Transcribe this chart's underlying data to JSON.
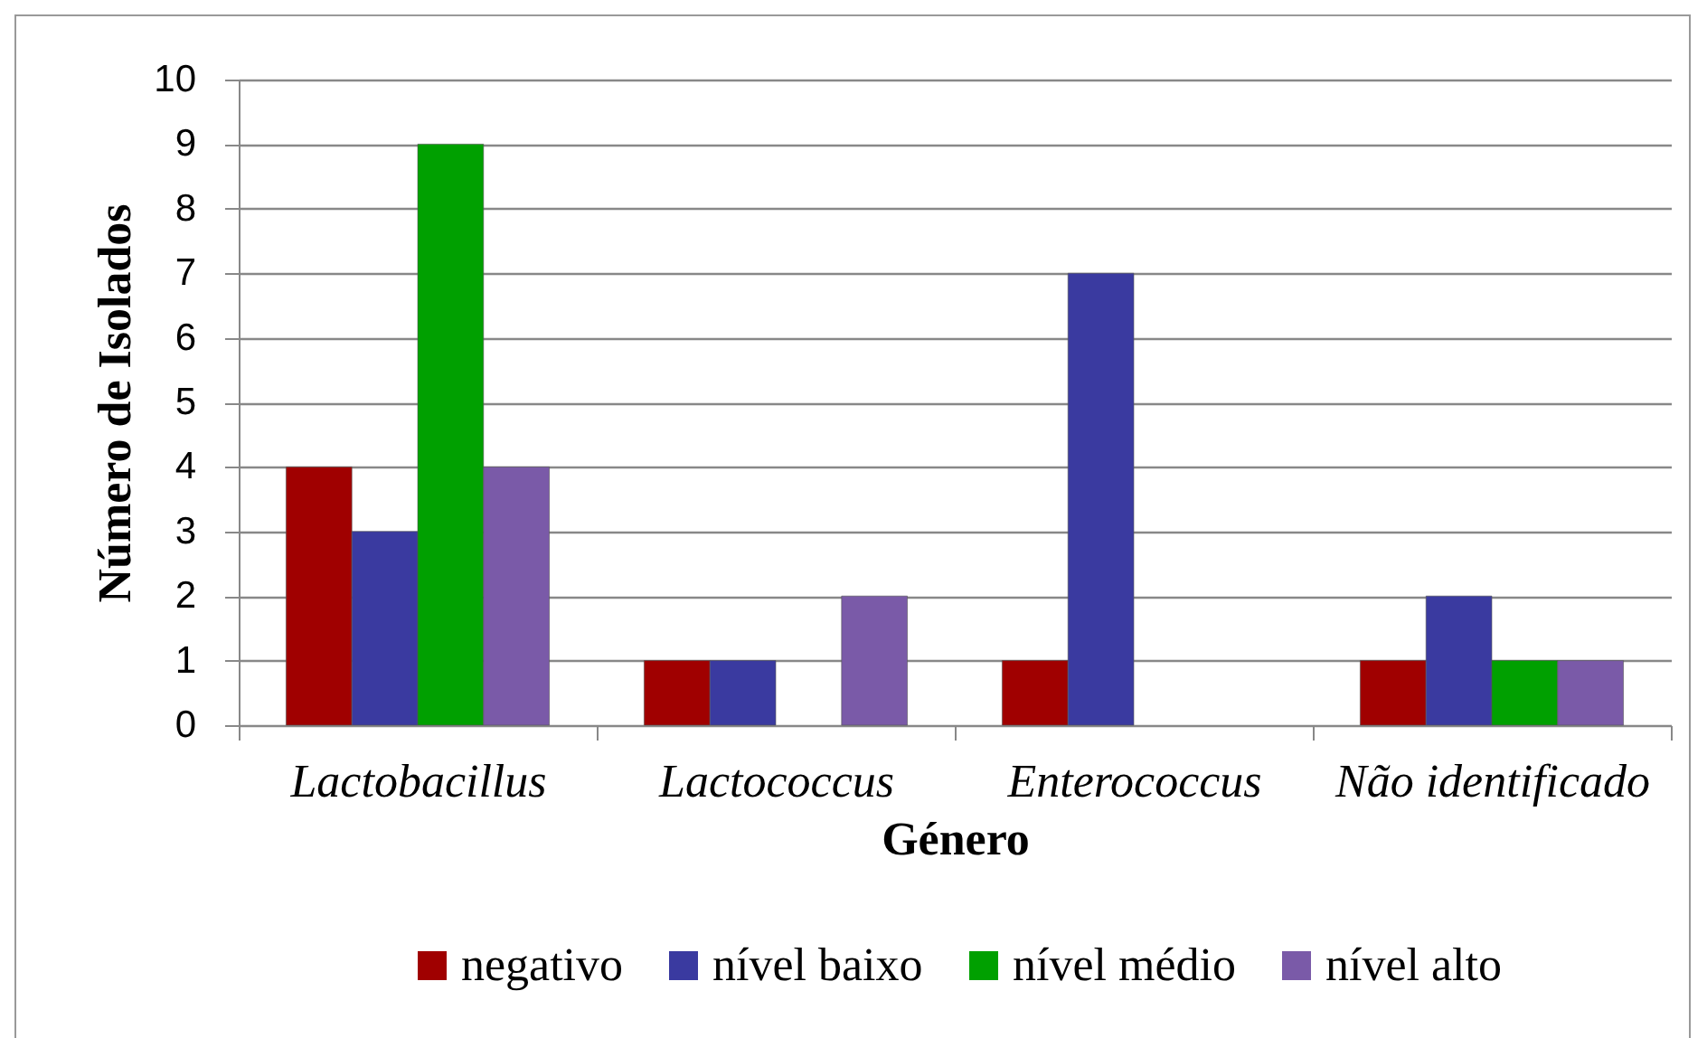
{
  "chart_data": {
    "type": "bar",
    "xlabel": "Género",
    "ylabel": "Número de Isolados",
    "categories": [
      "Lactobacillus",
      "Lactococcus",
      "Enterococcus",
      "Não identificado"
    ],
    "series": [
      {
        "name": "negativo",
        "color": "#a00000",
        "values": [
          4,
          1,
          1,
          1
        ]
      },
      {
        "name": "nível baixo",
        "color": "#3a3aa0",
        "values": [
          3,
          1,
          7,
          2
        ]
      },
      {
        "name": "nível médio",
        "color": "#00a000",
        "values": [
          9,
          null,
          null,
          1
        ]
      },
      {
        "name": "nível alto",
        "color": "#7a5aa8",
        "values": [
          4,
          2,
          null,
          1
        ]
      }
    ],
    "ylim": [
      0,
      10
    ],
    "yticks": [
      0,
      1,
      2,
      3,
      4,
      5,
      6,
      7,
      8,
      9,
      10
    ],
    "grid": "y",
    "legend": "bottom"
  }
}
